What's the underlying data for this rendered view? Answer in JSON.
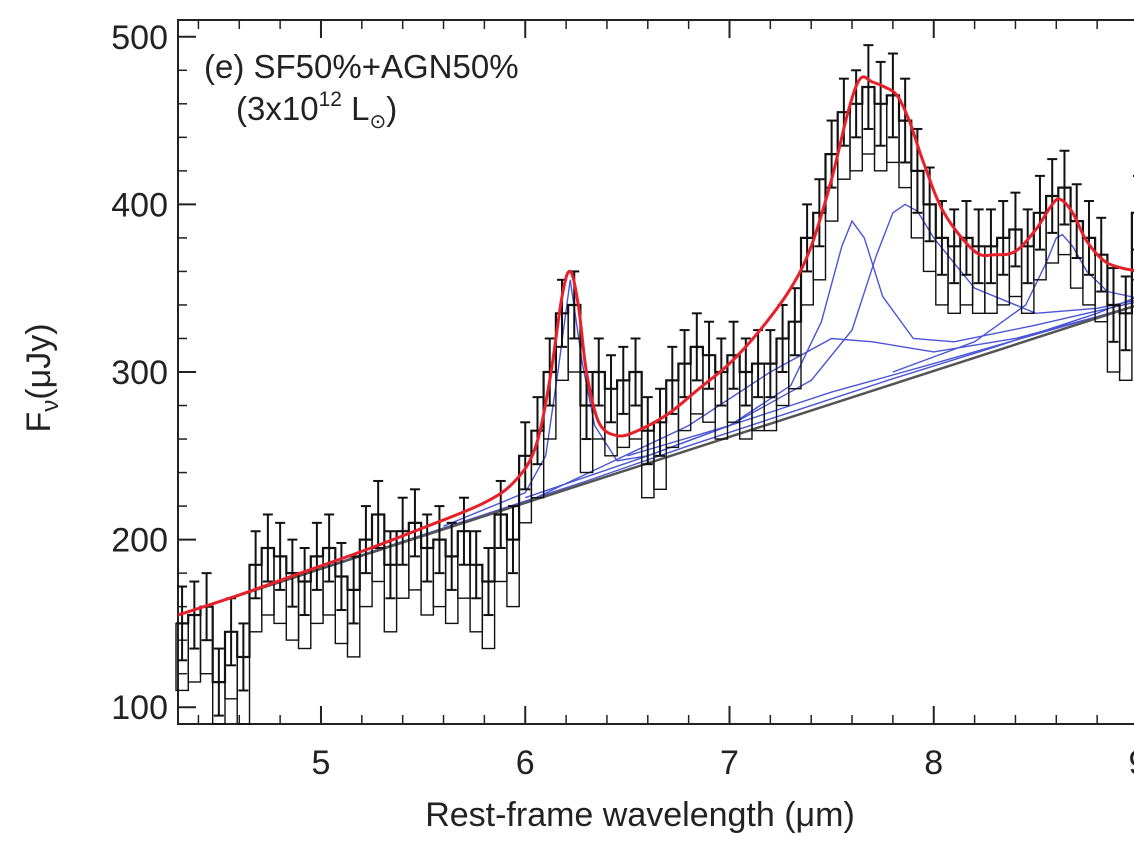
{
  "chart_data": {
    "type": "line",
    "annotation_line1": "(e) SF50%+AGN50%",
    "annotation_line2_prefix": "(3x10",
    "annotation_line2_exp": "12",
    "annotation_line2_suffix": " L",
    "annotation_line2_sub": "⊙",
    "annotation_line2_close": ")",
    "xlabel": "Rest-frame wavelength (μm)",
    "ylabel_main": "F",
    "ylabel_sub": "ν",
    "ylabel_unit": "(μJy)",
    "xlim": [
      4.3,
      9.0
    ],
    "ylim": [
      90,
      510
    ],
    "xticks": [
      5,
      6,
      7,
      8,
      9
    ],
    "xtick_labels": [
      "5",
      "6",
      "7",
      "8",
      "9"
    ],
    "yticks": [
      100,
      200,
      300,
      400,
      500
    ],
    "ytick_labels": [
      "100",
      "200",
      "300",
      "400",
      "500"
    ],
    "colors": {
      "data": "#111111",
      "model": "#e8202a",
      "components": "#4a55d6",
      "continuum": "#555555"
    },
    "observed": {
      "x": [
        4.32,
        4.38,
        4.44,
        4.5,
        4.56,
        4.62,
        4.68,
        4.74,
        4.8,
        4.86,
        4.92,
        4.98,
        5.04,
        5.1,
        5.16,
        5.22,
        5.28,
        5.34,
        5.4,
        5.46,
        5.52,
        5.58,
        5.64,
        5.7,
        5.76,
        5.82,
        5.88,
        5.94,
        6.0,
        6.06,
        6.12,
        6.18,
        6.24,
        6.3,
        6.36,
        6.42,
        6.48,
        6.54,
        6.6,
        6.66,
        6.72,
        6.78,
        6.84,
        6.9,
        6.96,
        7.02,
        7.08,
        7.14,
        7.2,
        7.26,
        7.32,
        7.38,
        7.44,
        7.5,
        7.56,
        7.62,
        7.68,
        7.74,
        7.8,
        7.86,
        7.92,
        7.98,
        8.04,
        8.1,
        8.16,
        8.22,
        8.28,
        8.34,
        8.4,
        8.46,
        8.52,
        8.58,
        8.64,
        8.7,
        8.76,
        8.82,
        8.88,
        8.94,
        9.0
      ],
      "y": [
        150,
        155,
        160,
        115,
        145,
        130,
        185,
        195,
        190,
        180,
        175,
        190,
        195,
        178,
        170,
        200,
        215,
        185,
        205,
        210,
        195,
        200,
        190,
        205,
        185,
        175,
        215,
        200,
        250,
        265,
        300,
        335,
        340,
        280,
        300,
        290,
        295,
        300,
        265,
        270,
        295,
        305,
        315,
        310,
        300,
        310,
        300,
        305,
        305,
        320,
        330,
        380,
        395,
        430,
        455,
        460,
        470,
        460,
        465,
        450,
        420,
        400,
        380,
        375,
        380,
        375,
        375,
        380,
        385,
        375,
        395,
        405,
        410,
        390,
        380,
        370,
        340,
        335,
        395
      ],
      "err": [
        22,
        20,
        20,
        20,
        20,
        20,
        20,
        20,
        20,
        20,
        20,
        20,
        20,
        20,
        20,
        20,
        20,
        20,
        20,
        20,
        20,
        20,
        20,
        20,
        20,
        20,
        20,
        20,
        20,
        20,
        20,
        20,
        20,
        20,
        20,
        20,
        20,
        20,
        20,
        20,
        20,
        20,
        20,
        20,
        20,
        20,
        20,
        20,
        20,
        20,
        20,
        20,
        20,
        20,
        20,
        20,
        25,
        25,
        25,
        25,
        25,
        22,
        22,
        22,
        22,
        22,
        22,
        22,
        22,
        22,
        22,
        22,
        22,
        22,
        22,
        22,
        22,
        22,
        22
      ]
    },
    "model": {
      "x": [
        4.3,
        4.6,
        4.9,
        5.2,
        5.5,
        5.8,
        5.95,
        6.05,
        6.12,
        6.18,
        6.22,
        6.26,
        6.3,
        6.36,
        6.45,
        6.55,
        6.7,
        6.85,
        7.0,
        7.15,
        7.3,
        7.4,
        7.5,
        7.58,
        7.64,
        7.7,
        7.76,
        7.82,
        7.88,
        7.95,
        8.05,
        8.2,
        8.3,
        8.4,
        8.5,
        8.58,
        8.62,
        8.68,
        8.75,
        8.85,
        9.0
      ],
      "y": [
        155,
        167,
        180,
        193,
        207,
        222,
        235,
        255,
        295,
        345,
        360,
        340,
        300,
        270,
        262,
        265,
        275,
        290,
        305,
        325,
        350,
        375,
        415,
        455,
        475,
        473,
        470,
        465,
        450,
        425,
        395,
        372,
        370,
        372,
        385,
        400,
        403,
        395,
        378,
        365,
        360
      ]
    },
    "continuum": {
      "x": [
        4.3,
        9.0
      ],
      "y": [
        155,
        340
      ]
    },
    "components": [
      {
        "x": [
          4.3,
          4.8,
          5.3,
          5.8,
          6.3,
          6.8,
          7.3,
          7.8,
          8.3,
          8.8,
          9.0
        ],
        "y": [
          155,
          175,
          195,
          215,
          235,
          256,
          276,
          296,
          315,
          335,
          345
        ]
      },
      {
        "x": [
          4.3,
          5.5,
          6.0,
          6.4,
          6.8,
          7.2,
          7.5,
          7.7,
          8.0,
          8.4,
          8.8,
          9.0
        ],
        "y": [
          155,
          202,
          222,
          245,
          268,
          300,
          320,
          318,
          312,
          320,
          333,
          340
        ]
      },
      {
        "x": [
          5.6,
          6.0,
          6.1,
          6.16,
          6.22,
          6.28,
          6.34,
          6.45,
          6.6,
          7.0,
          7.5,
          8.0,
          9.0
        ],
        "y": [
          208,
          228,
          250,
          300,
          355,
          305,
          268,
          247,
          250,
          268,
          288,
          305,
          340
        ]
      },
      {
        "x": [
          6.0,
          6.6,
          7.0,
          7.3,
          7.45,
          7.55,
          7.6,
          7.66,
          7.75,
          7.9,
          8.1,
          8.5,
          9.0
        ],
        "y": [
          225,
          250,
          268,
          292,
          330,
          375,
          390,
          380,
          345,
          320,
          318,
          328,
          342
        ]
      },
      {
        "x": [
          6.5,
          7.0,
          7.4,
          7.6,
          7.72,
          7.8,
          7.86,
          7.92,
          8.0,
          8.2,
          8.5,
          8.8,
          9.0
        ],
        "y": [
          250,
          268,
          295,
          325,
          370,
          395,
          400,
          396,
          380,
          350,
          335,
          338,
          343
        ]
      },
      {
        "x": [
          7.8,
          8.2,
          8.45,
          8.55,
          8.6,
          8.63,
          8.68,
          8.75,
          8.85,
          9.0
        ],
        "y": [
          300,
          318,
          340,
          365,
          380,
          382,
          375,
          360,
          348,
          344
        ]
      }
    ]
  }
}
